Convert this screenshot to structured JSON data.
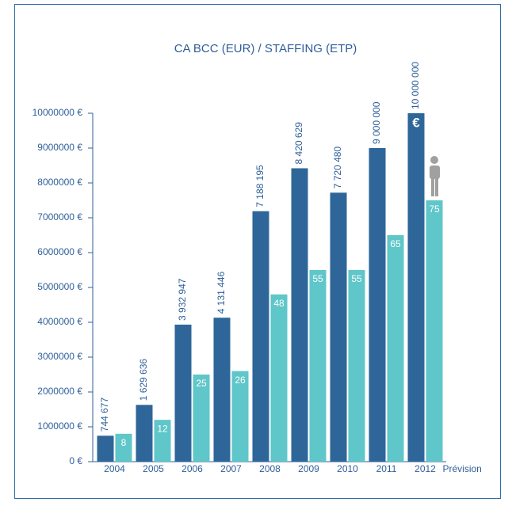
{
  "chart_data": {
    "type": "bar",
    "title": "CA BCC (EUR) / STAFFING (ETP)",
    "categories": [
      "2004",
      "2005",
      "2006",
      "2007",
      "2008",
      "2009",
      "2010",
      "2011",
      "2012"
    ],
    "annotations": [
      "Prévision",
      "€"
    ],
    "series": [
      {
        "name": "CA BCC (EUR)",
        "color": "#2f6699",
        "values": [
          744677,
          1629636,
          3932947,
          4131446,
          7188195,
          8420629,
          7720480,
          9000000,
          10000000
        ],
        "value_labels": [
          "744 677",
          "1 629 636",
          "3 932 947",
          "4 131 446",
          "7 188 195",
          "8 420 629",
          "7 720 480",
          "9 000 000",
          "10 000 000"
        ]
      },
      {
        "name": "STAFFING (ETP)",
        "color": "#5fc6c9",
        "axis": "y2",
        "values": [
          8,
          12,
          25,
          26,
          48,
          55,
          55,
          65,
          75
        ]
      }
    ],
    "ylim": [
      0,
      10000000
    ],
    "yticks": [
      {
        "value": 0,
        "label": "0 €"
      },
      {
        "value": 1000000,
        "label": "1000000 €"
      },
      {
        "value": 2000000,
        "label": "2000000 €"
      },
      {
        "value": 3000000,
        "label": "3000000 €"
      },
      {
        "value": 4000000,
        "label": "4000000 €"
      },
      {
        "value": 5000000,
        "label": "5000000 €"
      },
      {
        "value": 6000000,
        "label": "6000000 €"
      },
      {
        "value": 7000000,
        "label": "7000000 €"
      },
      {
        "value": 8000000,
        "label": "8000000 €"
      },
      {
        "value": 9000000,
        "label": "9000000 €"
      },
      {
        "value": 10000000,
        "label": "10000000 €"
      }
    ],
    "y2lim": [
      0,
      100
    ],
    "grid": false
  }
}
